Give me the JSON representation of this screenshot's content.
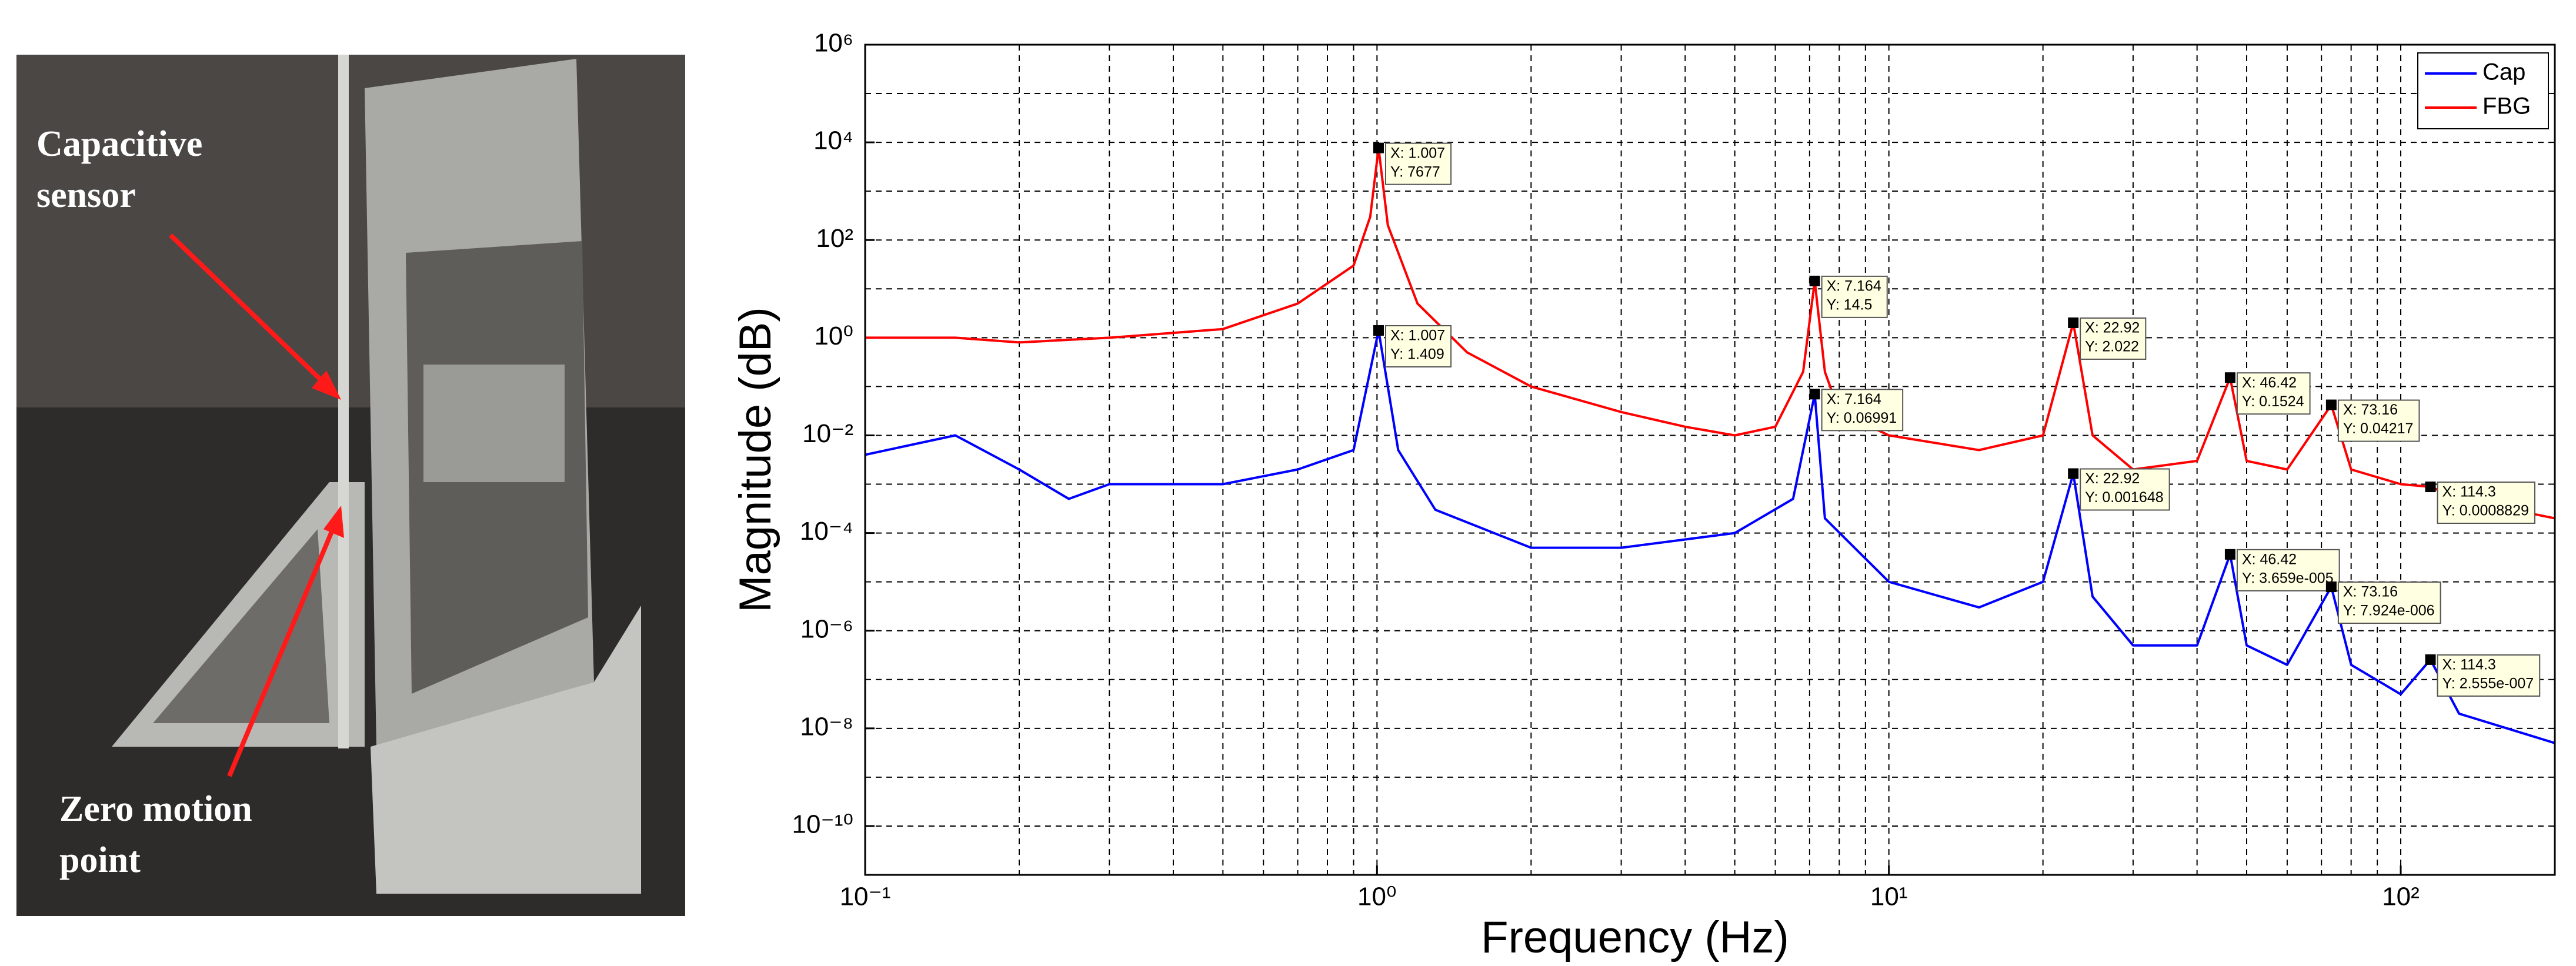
{
  "photo": {
    "labels": [
      "Capacitive",
      "sensor",
      "Zero motion",
      "point"
    ]
  },
  "chart_data": {
    "type": "line",
    "xlabel": "Frequency (Hz)",
    "ylabel": "Magnitude (dB)",
    "xscale": "log",
    "yscale": "log",
    "grid": true,
    "legend": "upper right",
    "xlim": [
      0.1,
      200
    ],
    "ylim": [
      1e-11,
      1000000
    ],
    "xticks": [
      {
        "value": 0.1,
        "label": "10⁻¹"
      },
      {
        "value": 1,
        "label": "10⁰"
      },
      {
        "value": 10,
        "label": "10¹"
      },
      {
        "value": 100,
        "label": "10²"
      }
    ],
    "yticks": [
      {
        "value": 1e-10,
        "label": "10⁻¹⁰"
      },
      {
        "value": 1e-08,
        "label": "10⁻⁸"
      },
      {
        "value": 1e-06,
        "label": "10⁻⁶"
      },
      {
        "value": 0.0001,
        "label": "10⁻⁴"
      },
      {
        "value": 0.01,
        "label": "10⁻²"
      },
      {
        "value": 1,
        "label": "10⁰"
      },
      {
        "value": 100,
        "label": "10²"
      },
      {
        "value": 10000,
        "label": "10⁴"
      },
      {
        "value": 1000000,
        "label": "10⁶"
      }
    ],
    "series": [
      {
        "name": "Cap",
        "color": "#0000ff",
        "x": [
          0.1,
          0.15,
          0.2,
          0.25,
          0.3,
          0.5,
          0.7,
          0.9,
          1.007,
          1.1,
          1.3,
          2,
          3,
          5,
          6.5,
          7.164,
          7.5,
          10,
          15,
          20,
          22.92,
          25,
          30,
          40,
          46.42,
          50,
          60,
          73.16,
          80,
          100,
          114.3,
          130,
          200
        ],
        "values": [
          0.004,
          0.01,
          0.002,
          0.0005,
          0.001,
          0.001,
          0.002,
          0.005,
          1.409,
          0.005,
          0.0003,
          5e-05,
          5e-05,
          0.0001,
          0.0005,
          0.06991,
          0.0002,
          1e-05,
          3e-06,
          1e-05,
          0.001648,
          5e-06,
          5e-07,
          5e-07,
          3.659e-05,
          5e-07,
          2e-07,
          7.924e-06,
          2e-07,
          5e-08,
          2.555e-07,
          2e-08,
          5e-09
        ]
      },
      {
        "name": "FBG",
        "color": "#ff0000",
        "x": [
          0.1,
          0.15,
          0.2,
          0.3,
          0.5,
          0.7,
          0.9,
          0.97,
          1.007,
          1.05,
          1.2,
          1.5,
          2,
          3,
          4,
          5,
          6,
          6.8,
          7.164,
          7.5,
          8,
          10,
          15,
          20,
          22.92,
          25,
          30,
          40,
          46.42,
          50,
          60,
          73.16,
          80,
          100,
          114.3,
          130,
          200
        ],
        "values": [
          1,
          1,
          0.8,
          1,
          1.5,
          5,
          30,
          300,
          7677,
          200,
          5,
          0.5,
          0.1,
          0.03,
          0.015,
          0.01,
          0.015,
          0.2,
          14.5,
          0.2,
          0.03,
          0.01,
          0.005,
          0.01,
          2.022,
          0.01,
          0.002,
          0.003,
          0.1524,
          0.003,
          0.002,
          0.04217,
          0.002,
          0.001,
          0.0008829,
          0.0005,
          0.0002
        ]
      }
    ],
    "annotations": [
      {
        "x": 1.007,
        "y": 7677,
        "label_x": "X: 1.007",
        "label_y": "Y: 7677"
      },
      {
        "x": 1.007,
        "y": 1.409,
        "label_x": "X: 1.007",
        "label_y": "Y: 1.409"
      },
      {
        "x": 7.164,
        "y": 14.5,
        "label_x": "X: 7.164",
        "label_y": "Y: 14.5"
      },
      {
        "x": 7.164,
        "y": 0.06991,
        "label_x": "X: 7.164",
        "label_y": "Y: 0.06991"
      },
      {
        "x": 22.92,
        "y": 2.022,
        "label_x": "X: 22.92",
        "label_y": "Y: 2.022"
      },
      {
        "x": 22.92,
        "y": 0.001648,
        "label_x": "X: 22.92",
        "label_y": "Y: 0.001648"
      },
      {
        "x": 46.42,
        "y": 0.1524,
        "label_x": "X: 46.42",
        "label_y": "Y: 0.1524"
      },
      {
        "x": 46.42,
        "y": 3.659e-05,
        "label_x": "X: 46.42",
        "label_y": "Y: 3.659e-005"
      },
      {
        "x": 73.16,
        "y": 0.04217,
        "label_x": "X: 73.16",
        "label_y": "Y: 0.04217"
      },
      {
        "x": 73.16,
        "y": 7.924e-06,
        "label_x": "X: 73.16",
        "label_y": "Y: 7.924e-006"
      },
      {
        "x": 114.3,
        "y": 0.0008829,
        "label_x": "X: 114.3",
        "label_y": "Y: 0.0008829"
      },
      {
        "x": 114.3,
        "y": 2.555e-07,
        "label_x": "X: 114.3",
        "label_y": "Y: 2.555e-007"
      }
    ]
  }
}
